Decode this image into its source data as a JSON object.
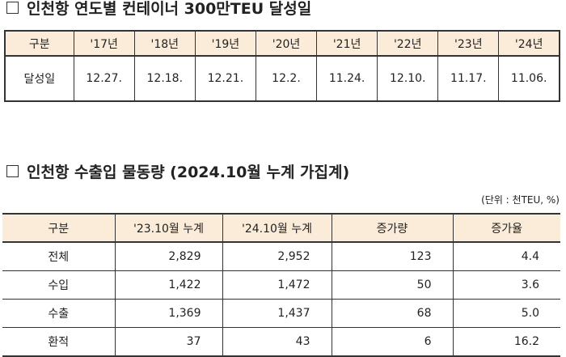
{
  "section1": {
    "title": "인천항 연도별 컨테이너 300만TEU 달성일",
    "table": {
      "header": [
        "구분",
        "'17년",
        "'18년",
        "'19년",
        "'20년",
        "'21년",
        "'22년",
        "'23년",
        "'24년"
      ],
      "rows": [
        [
          "달성일",
          "12.27.",
          "12.18.",
          "12.21.",
          "12.2.",
          "11.24.",
          "12.10.",
          "11.17.",
          "11.06."
        ]
      ]
    }
  },
  "section2": {
    "title": "인천항 수출입 물동량 (2024.10월 누계 가집계)",
    "unit": "(단위 : 천TEU, %)",
    "table": {
      "header": [
        "구분",
        "'23.10월 누계",
        "'24.10월 누계",
        "증가량",
        "증가율"
      ],
      "rows": [
        [
          "전체",
          "2,829",
          "2,952",
          "123",
          "4.4"
        ],
        [
          "수입",
          "1,422",
          "1,472",
          "50",
          "3.6"
        ],
        [
          "수출",
          "1,369",
          "1,437",
          "68",
          "5.0"
        ],
        [
          "환적",
          "37",
          "43",
          "6",
          "16.2"
        ]
      ]
    }
  }
}
